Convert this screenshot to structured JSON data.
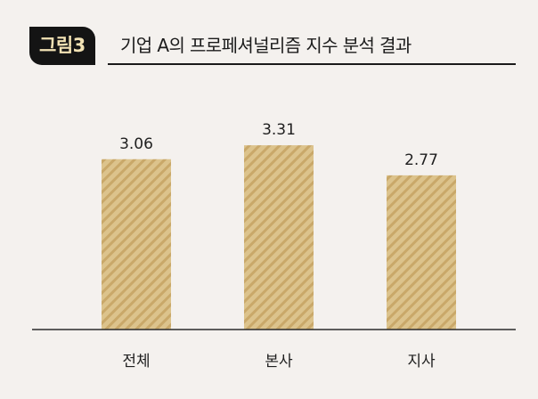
{
  "figure": {
    "label": "그림3",
    "title": "기업 A의 프로페셔널리즘 지수 분석 결과"
  },
  "colors": {
    "background": "#f4f1ee",
    "bar_fill": "#dcc38c",
    "bar_stripe": "#c9a869",
    "badge_bg": "#141414",
    "badge_text": "#f2e2b4",
    "axis": "#2b2b2b"
  },
  "chart_data": {
    "type": "bar",
    "title": "기업 A의 프로페셔널리즘 지수 분석 결과",
    "categories": [
      "전체",
      "본사",
      "지사"
    ],
    "values": [
      3.06,
      3.31,
      2.77
    ],
    "value_labels": [
      "3.06",
      "3.31",
      "2.77"
    ],
    "xlabel": "",
    "ylabel": "",
    "ylim": [
      0,
      3.6
    ],
    "grid": false,
    "legend": "none",
    "bar_pattern": "diagonal-stripes"
  }
}
